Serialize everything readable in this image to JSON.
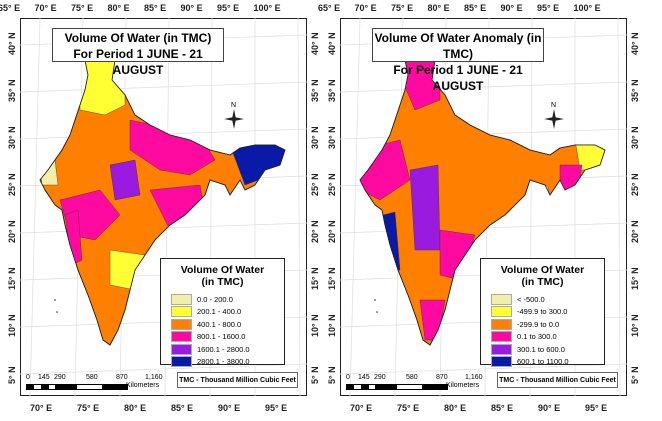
{
  "lon_top": [
    "65° E",
    "70° E",
    "75° E",
    "80° E",
    "85° E",
    "90° E",
    "95° E",
    "100° E"
  ],
  "lon_bottom": [
    "70° E",
    "75° E",
    "80° E",
    "85° E",
    "90° E",
    "95° E"
  ],
  "lat_labels": [
    "40° N",
    "35° N",
    "30° N",
    "25° N",
    "20° N",
    "15° N",
    "10° N",
    "5° N"
  ],
  "north_label": "N",
  "scale": {
    "ticks": [
      "0",
      "145",
      "290",
      "580",
      "870",
      "1,160"
    ],
    "unit": "Kilometers"
  },
  "note": "TMC - Thousand Million Cubic Feet",
  "panels": [
    {
      "title_line1": "Volume Of Water (in TMC)",
      "title_line2": "For Period 1 JUNE - 21 AUGUST",
      "legend_title_1": "Volume Of Water",
      "legend_title_2": "(in TMC)",
      "legend": [
        {
          "label": "0.0 - 200.0",
          "color": "#f3efa6"
        },
        {
          "label": "200.1 - 400.0",
          "color": "#ffff33"
        },
        {
          "label": "400.1 - 800.0",
          "color": "#ff8000"
        },
        {
          "label": "800.1 - 1600.0",
          "color": "#ff0aa0"
        },
        {
          "label": "1600.1 - 2800.0",
          "color": "#9b1ae0"
        },
        {
          "label": "2800.1 - 3800.0",
          "color": "#0a1aa8"
        }
      ]
    },
    {
      "title_line1": "Volume Of Water Anomaly (in TMC)",
      "title_line2": "For Period 1 JUNE - 21 AUGUST",
      "legend_title_1": "Volume Of Water",
      "legend_title_2": "(in TMC)",
      "legend": [
        {
          "label": "< -500.0",
          "color": "#f3efa6"
        },
        {
          "label": "-499.9 to 300.0",
          "color": "#ffff33"
        },
        {
          "label": "-299.9 to 0.0",
          "color": "#ff8000"
        },
        {
          "label": "0.1 to 300.0",
          "color": "#ff0aa0"
        },
        {
          "label": "300.1 to 600.0",
          "color": "#9b1ae0"
        },
        {
          "label": "600.1 to 1100.0",
          "color": "#0a1aa8"
        }
      ]
    }
  ]
}
